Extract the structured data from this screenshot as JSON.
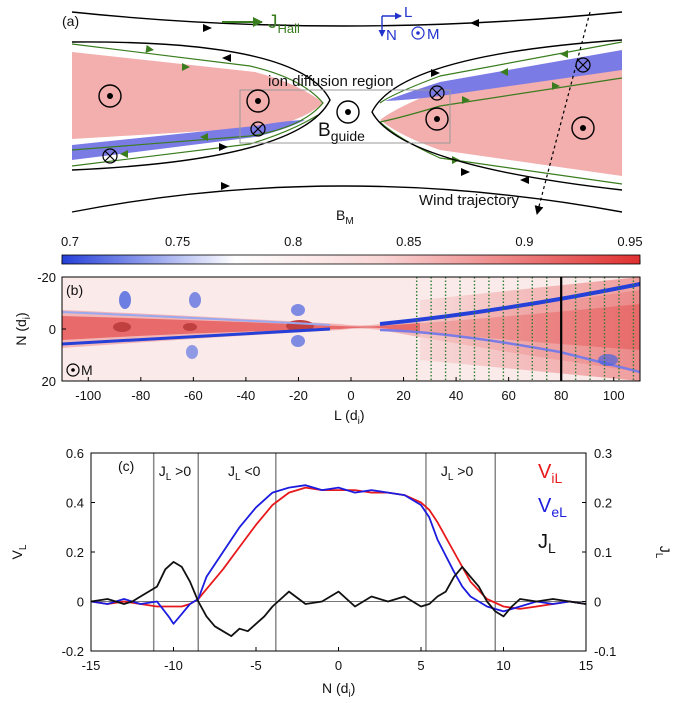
{
  "panel_a": {
    "label": "(a)",
    "legend_current": "J",
    "legend_current_sub": "Hall",
    "axis_L": "L",
    "axis_N": "N",
    "axis_M": "M",
    "ion_diffusion_region": "ion diffusion region",
    "guide_field": "B",
    "guide_field_sub": "guide",
    "wind_trajectory": "Wind trajectory"
  },
  "colorbar": {
    "label": "B",
    "label_sub": "M",
    "ticks": [
      "0.7",
      "0.75",
      "0.8",
      "0.85",
      "0.9",
      "0.95"
    ],
    "range": [
      0.7,
      0.95
    ]
  },
  "panel_b": {
    "label": "(b)",
    "m_marker": "M",
    "xlabel": "L (d",
    "xlabel_sub": "i",
    "xlabel_end": ")",
    "ylabel": "N (d",
    "ylabel_sub": "i",
    "ylabel_end": ")",
    "xticks": [
      "-100",
      "-80",
      "-60",
      "-40",
      "-20",
      "0",
      "20",
      "40",
      "60",
      "80",
      "100"
    ],
    "yticks": [
      "-20",
      "0",
      "20"
    ],
    "wind_cut_L": 80
  },
  "chart_data": [
    {
      "type": "heatmap",
      "panel": "(b)",
      "quantity": "B_M",
      "xlabel": "L (d_i)",
      "ylabel": "N (d_i)",
      "xlim": [
        -110,
        110
      ],
      "ylim": [
        20,
        -20
      ],
      "colorbar_range": [
        0.7,
        0.95
      ],
      "vertical_cut_L": 80,
      "trajectory_cuts_L_range": [
        25,
        110
      ]
    },
    {
      "type": "line",
      "panel": "(c)",
      "title": "",
      "xlabel": "N (d_i)",
      "ylabel_left": "V_L",
      "ylabel_right": "J_L",
      "xlim": [
        -15,
        15
      ],
      "ylim_left": [
        -0.2,
        0.6
      ],
      "ylim_right": [
        -0.1,
        0.3
      ],
      "xticks": [
        "-15",
        "-10",
        "-5",
        "0",
        "5",
        "10",
        "15"
      ],
      "yticks_left": [
        "-0.2",
        "0",
        "0.2",
        "0.4",
        "0.6"
      ],
      "yticks_right": [
        "-0.1",
        "0",
        "0.1",
        "0.2",
        "0.3"
      ],
      "region_boundaries": [
        -11.2,
        -8.5,
        -3.8,
        5.3,
        9.5
      ],
      "region_labels": [
        {
          "text": "J",
          "sub": "L",
          "rel": " >0",
          "x": -11.2
        },
        {
          "text": "J",
          "sub": "L",
          "rel": " <0",
          "x": -7.0
        },
        {
          "text": "J",
          "sub": "L",
          "rel": " >0",
          "x": 5.9
        }
      ],
      "series": [
        {
          "name": "V_iL",
          "label": "V",
          "sub": "iL",
          "color": "#e8191c",
          "axis": "left",
          "x": [
            -15,
            -14,
            -13,
            -12,
            -11,
            -10,
            -9.5,
            -9,
            -8.5,
            -8,
            -7,
            -6,
            -5,
            -4,
            -3,
            -2,
            -1,
            0,
            1,
            2,
            3,
            4,
            5,
            5.5,
            6,
            7,
            8,
            9,
            10,
            11,
            12,
            13,
            14,
            15
          ],
          "y": [
            0.0,
            -0.01,
            0.0,
            -0.01,
            -0.02,
            -0.02,
            -0.02,
            -0.01,
            0.01,
            0.05,
            0.13,
            0.22,
            0.31,
            0.39,
            0.44,
            0.46,
            0.45,
            0.45,
            0.45,
            0.44,
            0.44,
            0.43,
            0.4,
            0.37,
            0.32,
            0.2,
            0.08,
            0.01,
            -0.02,
            -0.03,
            -0.02,
            -0.01,
            0.0,
            -0.01
          ]
        },
        {
          "name": "V_eL",
          "label": "V",
          "sub": "eL",
          "color": "#1c1ce0",
          "axis": "left",
          "x": [
            -15,
            -14,
            -13,
            -12,
            -11,
            -10.3,
            -10,
            -9.5,
            -9,
            -8.5,
            -8,
            -7,
            -6,
            -5,
            -4,
            -3,
            -2,
            -1,
            0,
            1,
            2,
            3,
            4,
            5,
            5.5,
            6,
            7,
            7.5,
            8,
            9,
            10,
            11,
            12,
            13,
            14,
            15
          ],
          "y": [
            0.0,
            -0.01,
            0.01,
            -0.01,
            0.0,
            -0.06,
            -0.09,
            -0.05,
            -0.01,
            0.01,
            0.1,
            0.2,
            0.3,
            0.38,
            0.44,
            0.46,
            0.47,
            0.45,
            0.46,
            0.44,
            0.45,
            0.44,
            0.43,
            0.39,
            0.34,
            0.25,
            0.12,
            0.06,
            0.02,
            -0.02,
            -0.04,
            -0.02,
            0.0,
            -0.01,
            0.0,
            -0.01
          ]
        },
        {
          "name": "J_L",
          "label": "J",
          "sub": "L",
          "color": "#111111",
          "axis": "right",
          "x": [
            -15,
            -14,
            -13,
            -12.5,
            -12,
            -11,
            -10.5,
            -10,
            -9.5,
            -9,
            -8.5,
            -8,
            -7.5,
            -7,
            -6.5,
            -6,
            -5.5,
            -5,
            -4.5,
            -4,
            -3.5,
            -3,
            -2,
            -1,
            0,
            1,
            2,
            3,
            4,
            5,
            5.5,
            6,
            6.5,
            7,
            7.5,
            8,
            8.5,
            9,
            9.5,
            10,
            10.5,
            11,
            12,
            13,
            14,
            15
          ],
          "y": [
            0.0,
            0.005,
            -0.005,
            0.0,
            0.01,
            0.03,
            0.065,
            0.08,
            0.07,
            0.04,
            0.0,
            -0.03,
            -0.05,
            -0.06,
            -0.07,
            -0.055,
            -0.06,
            -0.045,
            -0.03,
            -0.01,
            0.005,
            0.02,
            -0.005,
            0.0,
            0.02,
            -0.01,
            0.01,
            0.0,
            0.01,
            -0.01,
            -0.005,
            0.01,
            0.02,
            0.05,
            0.07,
            0.05,
            0.03,
            0.0,
            -0.02,
            -0.03,
            -0.01,
            0.005,
            0.0,
            0.005,
            0.0,
            -0.005
          ]
        }
      ]
    }
  ],
  "panel_c": {
    "label": "(c)",
    "ylabel_left": "V",
    "ylabel_left_sub": "L",
    "ylabel_right": "J",
    "ylabel_right_sub": "L",
    "xlabel": "N (d",
    "xlabel_sub": "i",
    "xlabel_end": ")"
  },
  "colors": {
    "field_line": "#000000",
    "hall_current": "#3a7d1e",
    "region_pink": "#f3aeae",
    "region_blue": "#7b7be6",
    "axis_blue": "#2233cc",
    "cut_green": "#2e7d32",
    "cmap_low": "#2540d8",
    "cmap_mid": "#ffffff",
    "cmap_high": "#e03030"
  }
}
